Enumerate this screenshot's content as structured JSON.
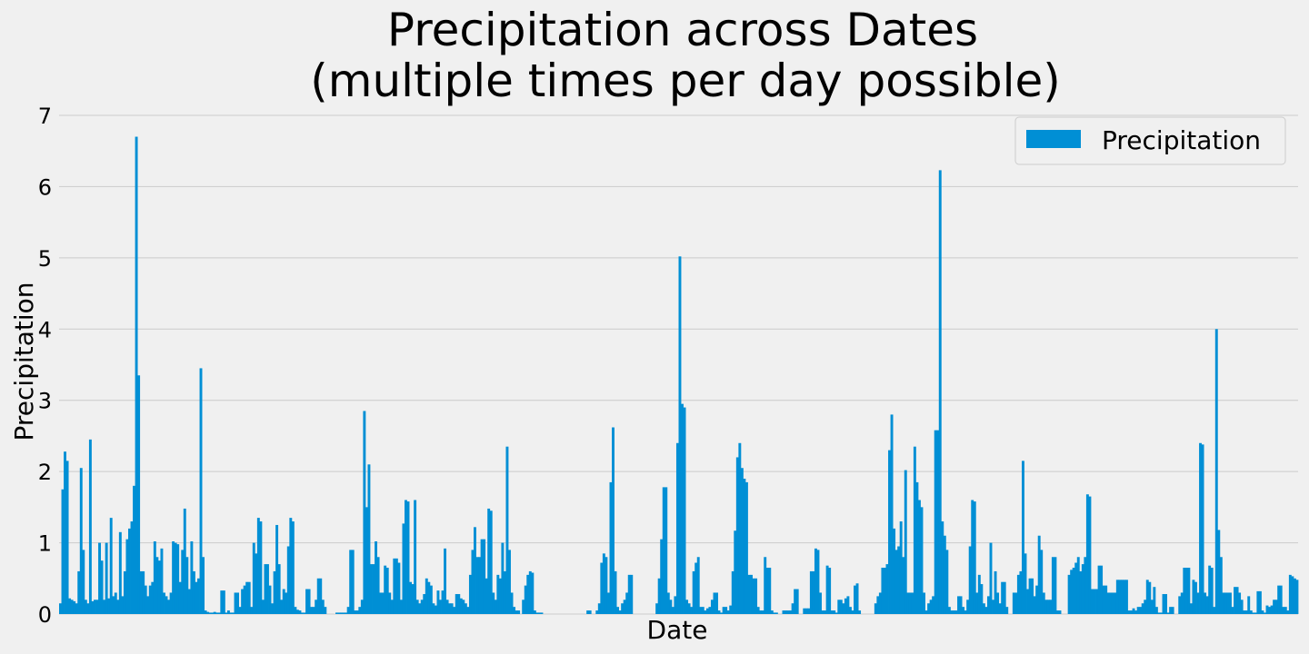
{
  "chart_data": {
    "type": "bar",
    "title_lines": [
      "Precipitation across Dates",
      "(multiple times per day possible)"
    ],
    "xlabel": "Date",
    "ylabel": "Precipitation",
    "ylim": [
      0,
      7
    ],
    "yticks": [
      0,
      1,
      2,
      3,
      4,
      5,
      6,
      7
    ],
    "grid": "horizontal",
    "legend": {
      "position": "top-right",
      "entries": [
        "Precipitation"
      ]
    },
    "series": [
      {
        "name": "Precipitation",
        "color": "#008fd5",
        "values": [
          0.15,
          1.75,
          2.28,
          2.15,
          0.22,
          0.2,
          0.18,
          0.15,
          0.6,
          2.05,
          0.9,
          0.2,
          0.15,
          2.45,
          0.18,
          0.2,
          0.2,
          1.0,
          0.75,
          0.2,
          1.0,
          0.22,
          1.35,
          0.25,
          0.3,
          0.2,
          1.15,
          0.25,
          0.6,
          1.05,
          1.2,
          1.3,
          1.8,
          6.7,
          3.35,
          0.6,
          0.6,
          0.4,
          0.25,
          0.4,
          0.45,
          1.02,
          0.8,
          0.75,
          0.92,
          0.3,
          0.25,
          0.2,
          0.3,
          1.02,
          1.0,
          0.98,
          0.45,
          0.9,
          1.48,
          0.8,
          0.35,
          1.02,
          0.6,
          0.45,
          0.5,
          3.45,
          0.8,
          0.05,
          0.03,
          0.02,
          0.02,
          0.03,
          0.02,
          0.02,
          0.33,
          0.33,
          0.02,
          0.05,
          0.02,
          0.02,
          0.3,
          0.3,
          0.1,
          0.35,
          0.4,
          0.45,
          0.45,
          0.1,
          1.0,
          0.85,
          1.35,
          1.3,
          0.2,
          0.7,
          0.7,
          0.4,
          0.15,
          0.6,
          1.25,
          0.7,
          0.2,
          0.35,
          0.3,
          0.95,
          1.35,
          1.3,
          0.1,
          0.06,
          0.05,
          0.02,
          0.02,
          0.35,
          0.35,
          0.1,
          0.1,
          0.2,
          0.5,
          0.5,
          0.2,
          0.1,
          0.0,
          0.0,
          0.0,
          0.0,
          0.02,
          0.02,
          0.02,
          0.02,
          0.02,
          0.1,
          0.9,
          0.9,
          0.05,
          0.05,
          0.1,
          0.2,
          2.85,
          1.5,
          2.1,
          0.7,
          0.7,
          1.02,
          0.8,
          0.3,
          0.3,
          0.68,
          0.65,
          0.3,
          0.2,
          0.78,
          0.78,
          0.72,
          0.2,
          1.27,
          1.6,
          1.58,
          0.45,
          0.42,
          1.6,
          0.2,
          0.15,
          0.2,
          0.28,
          0.5,
          0.45,
          0.4,
          0.15,
          0.12,
          0.33,
          0.2,
          0.33,
          0.92,
          0.2,
          0.15,
          0.15,
          0.1,
          0.28,
          0.28,
          0.22,
          0.2,
          0.15,
          0.1,
          0.55,
          0.9,
          1.22,
          0.8,
          0.8,
          1.05,
          1.05,
          0.5,
          1.48,
          1.45,
          0.3,
          0.2,
          0.55,
          0.5,
          1.0,
          0.6,
          2.35,
          0.9,
          0.3,
          0.1,
          0.05,
          0.05,
          0.0,
          0.2,
          0.4,
          0.55,
          0.6,
          0.58,
          0.05,
          0.02,
          0.02,
          0.02,
          0.0,
          0.0,
          0.0,
          0.0,
          0.0,
          0.0,
          0.0,
          0.0,
          0.0,
          0.0,
          0.0,
          0.0,
          0.0,
          0.0,
          0.0,
          0.0,
          0.0,
          0.0,
          0.0,
          0.05,
          0.05,
          0.0,
          0.0,
          0.05,
          0.15,
          0.72,
          0.85,
          0.8,
          0.3,
          1.85,
          2.62,
          0.6,
          0.1,
          0.05,
          0.15,
          0.2,
          0.3,
          0.55,
          0.55,
          0.0,
          0.0,
          0.0,
          0.0,
          0.0,
          0.0,
          0.0,
          0.0,
          0.0,
          0.0,
          0.15,
          0.5,
          1.05,
          1.78,
          1.78,
          0.3,
          0.2,
          0.1,
          0.25,
          2.4,
          5.02,
          2.95,
          2.9,
          0.2,
          0.15,
          0.1,
          0.6,
          0.72,
          0.8,
          0.1,
          0.1,
          0.05,
          0.08,
          0.1,
          0.2,
          0.3,
          0.3,
          0.05,
          0.02,
          0.1,
          0.1,
          0.05,
          0.12,
          0.6,
          1.17,
          2.2,
          2.4,
          2.05,
          1.9,
          1.85,
          0.55,
          0.55,
          0.5,
          0.5,
          0.1,
          0.05,
          0.05,
          0.8,
          0.65,
          0.65,
          0.05,
          0.02,
          0.02,
          0.0,
          0.0,
          0.05,
          0.05,
          0.05,
          0.05,
          0.15,
          0.35,
          0.35,
          0.0,
          0.0,
          0.08,
          0.08,
          0.08,
          0.6,
          0.6,
          0.92,
          0.9,
          0.3,
          0.05,
          0.05,
          0.68,
          0.65,
          0.05,
          0.05,
          0.02,
          0.2,
          0.2,
          0.15,
          0.22,
          0.25,
          0.1,
          0.05,
          0.4,
          0.43,
          0.05,
          0.0,
          0.0,
          0.0,
          0.0,
          0.0,
          0.0,
          0.15,
          0.25,
          0.3,
          0.65,
          0.65,
          0.7,
          2.3,
          2.8,
          1.2,
          0.9,
          0.95,
          1.3,
          0.8,
          2.02,
          0.3,
          0.3,
          0.3,
          2.35,
          1.85,
          1.6,
          1.5,
          0.3,
          0.05,
          0.15,
          0.2,
          0.25,
          2.58,
          2.58,
          6.23,
          1.3,
          1.1,
          0.9,
          0.1,
          0.05,
          0.05,
          0.05,
          0.25,
          0.25,
          0.1,
          0.05,
          0.2,
          0.95,
          1.6,
          1.58,
          0.3,
          0.55,
          0.42,
          0.15,
          0.1,
          0.25,
          1.0,
          0.2,
          0.6,
          0.3,
          0.15,
          0.45,
          0.45,
          0.1,
          0.0,
          0.0,
          0.3,
          0.3,
          0.55,
          0.6,
          2.15,
          0.85,
          0.35,
          0.5,
          0.5,
          0.25,
          0.4,
          1.1,
          0.9,
          0.3,
          0.2,
          0.2,
          0.2,
          0.8,
          0.8,
          0.05,
          0.05,
          0.0,
          0.0,
          0.0,
          0.55,
          0.62,
          0.65,
          0.72,
          0.8,
          0.6,
          0.7,
          0.8,
          1.68,
          1.65,
          0.35,
          0.35,
          0.35,
          0.68,
          0.68,
          0.4,
          0.4,
          0.3,
          0.3,
          0.3,
          0.3,
          0.48,
          0.48,
          0.48,
          0.48,
          0.48,
          0.05,
          0.05,
          0.08,
          0.05,
          0.1,
          0.1,
          0.15,
          0.2,
          0.48,
          0.45,
          0.2,
          0.38,
          0.1,
          0.02,
          0.02,
          0.28,
          0.28,
          0.02,
          0.1,
          0.1,
          0.0,
          0.0,
          0.25,
          0.3,
          0.65,
          0.65,
          0.65,
          0.15,
          0.48,
          0.45,
          0.3,
          2.4,
          2.38,
          0.3,
          0.25,
          0.68,
          0.65,
          0.1,
          4.0,
          1.18,
          0.8,
          0.3,
          0.3,
          0.3,
          0.3,
          0.1,
          0.38,
          0.38,
          0.3,
          0.2,
          0.05,
          0.05,
          0.25,
          0.05,
          0.02,
          0.02,
          0.32,
          0.32,
          0.05,
          0.02,
          0.12,
          0.1,
          0.12,
          0.2,
          0.2,
          0.4,
          0.4,
          0.1,
          0.1,
          0.05,
          0.55,
          0.53,
          0.5,
          0.48
        ]
      }
    ]
  }
}
